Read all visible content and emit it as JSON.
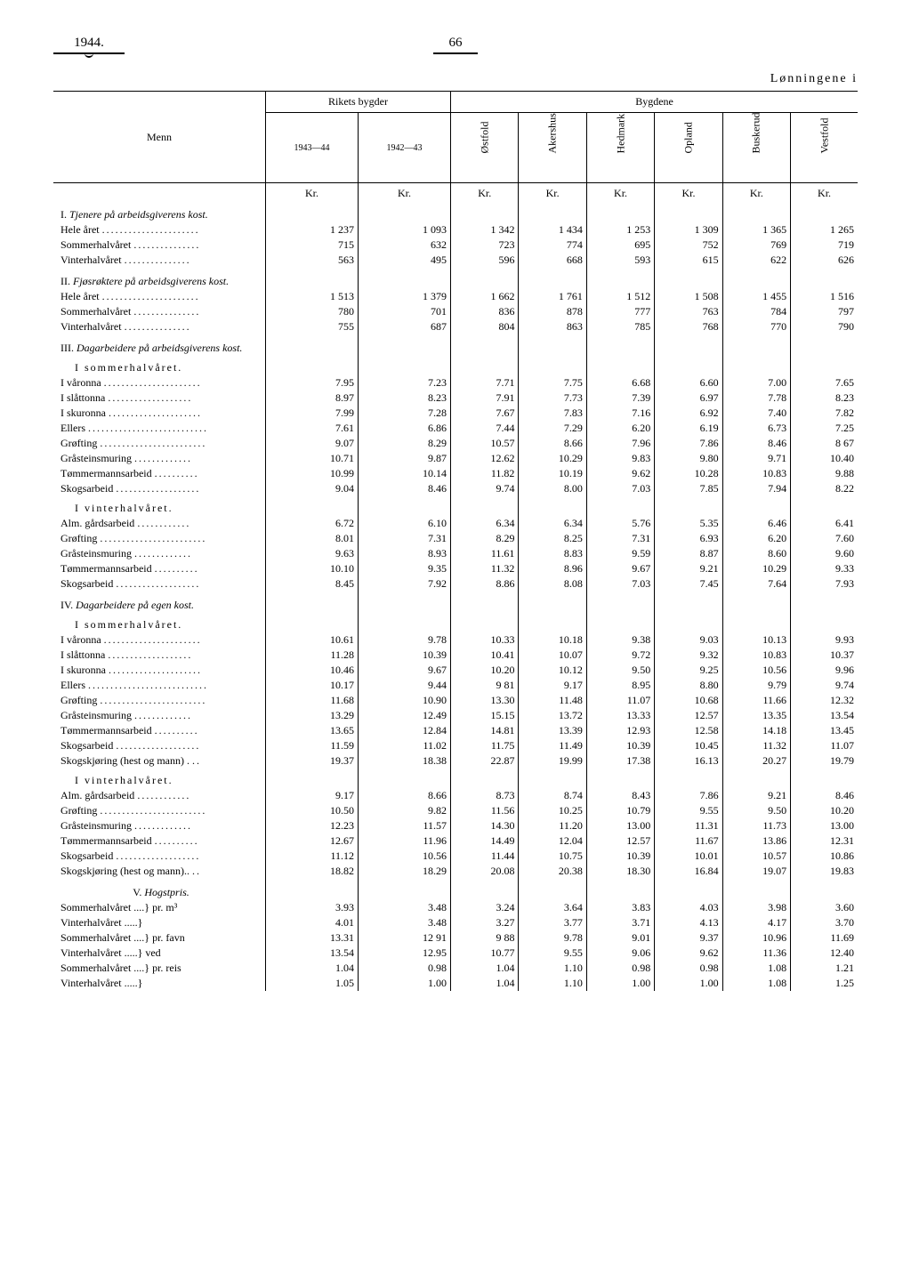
{
  "header": {
    "year": "1944.",
    "page": "66",
    "tableTitle": "Lønningene i"
  },
  "columns": {
    "menn": "Menn",
    "rikets": "Rikets bygder",
    "bygdene": "Bygdene",
    "y1": "1943—44",
    "y2": "1942—43",
    "regions": [
      "Østfold",
      "Akershus",
      "Hedmark",
      "Opland",
      "Buskerud",
      "Vestfold"
    ]
  },
  "kr": "Kr.",
  "sections": [
    {
      "title": "I. Tjenere på arbeidsgiverens kost.",
      "italic": true,
      "rows": [
        {
          "label": "Hele året",
          "v": [
            "1 237",
            "1 093",
            "1 342",
            "1 434",
            "1 253",
            "1 309",
            "1 365",
            "1 265"
          ]
        },
        {
          "label": "Sommerhalvåret",
          "v": [
            "715",
            "632",
            "723",
            "774",
            "695",
            "752",
            "769",
            "719"
          ]
        },
        {
          "label": "Vinterhalvåret",
          "v": [
            "563",
            "495",
            "596",
            "668",
            "593",
            "615",
            "622",
            "626"
          ]
        }
      ]
    },
    {
      "title": "II. Fjøsrøktere på arbeidsgiverens kost.",
      "italic": true,
      "rows": [
        {
          "label": "Hele året",
          "v": [
            "1 513",
            "1 379",
            "1 662",
            "1 761",
            "1 512",
            "1 508",
            "1 455",
            "1 516"
          ]
        },
        {
          "label": "Sommerhalvåret",
          "v": [
            "780",
            "701",
            "836",
            "878",
            "777",
            "763",
            "784",
            "797"
          ]
        },
        {
          "label": "Vinterhalvåret",
          "v": [
            "755",
            "687",
            "804",
            "863",
            "785",
            "768",
            "770",
            "790"
          ]
        }
      ]
    },
    {
      "title": "III. Dagarbeidere på arbeidsgiverens kost.",
      "italic": true,
      "subsections": [
        {
          "subtitle": "I sommerhalvåret.",
          "rows": [
            {
              "label": "I våronna",
              "v": [
                "7.95",
                "7.23",
                "7.71",
                "7.75",
                "6.68",
                "6.60",
                "7.00",
                "7.65"
              ]
            },
            {
              "label": "I slåttonna",
              "v": [
                "8.97",
                "8.23",
                "7.91",
                "7.73",
                "7.39",
                "6.97",
                "7.78",
                "8.23"
              ]
            },
            {
              "label": "I skuronna",
              "v": [
                "7.99",
                "7.28",
                "7.67",
                "7.83",
                "7.16",
                "6.92",
                "7.40",
                "7.82"
              ]
            },
            {
              "label": "Ellers",
              "v": [
                "7.61",
                "6.86",
                "7.44",
                "7.29",
                "6.20",
                "6.19",
                "6.73",
                "7.25"
              ]
            },
            {
              "label": "Grøfting",
              "v": [
                "9.07",
                "8.29",
                "10.57",
                "8.66",
                "7.96",
                "7.86",
                "8.46",
                "8 67"
              ]
            },
            {
              "label": "Gråsteinsmuring",
              "v": [
                "10.71",
                "9.87",
                "12.62",
                "10.29",
                "9.83",
                "9.80",
                "9.71",
                "10.40"
              ]
            },
            {
              "label": "Tømmermannsarbeid",
              "v": [
                "10.99",
                "10.14",
                "11.82",
                "10.19",
                "9.62",
                "10.28",
                "10.83",
                "9.88"
              ]
            },
            {
              "label": "Skogsarbeid",
              "v": [
                "9.04",
                "8.46",
                "9.74",
                "8.00",
                "7.03",
                "7.85",
                "7.94",
                "8.22"
              ]
            }
          ]
        },
        {
          "subtitle": "I vinterhalvåret.",
          "rows": [
            {
              "label": "Alm. gårdsarbeid",
              "v": [
                "6.72",
                "6.10",
                "6.34",
                "6.34",
                "5.76",
                "5.35",
                "6.46",
                "6.41"
              ]
            },
            {
              "label": "Grøfting",
              "v": [
                "8.01",
                "7.31",
                "8.29",
                "8.25",
                "7.31",
                "6.93",
                "6.20",
                "7.60"
              ]
            },
            {
              "label": "Gråsteinsmuring",
              "v": [
                "9.63",
                "8.93",
                "11.61",
                "8.83",
                "9.59",
                "8.87",
                "8.60",
                "9.60"
              ]
            },
            {
              "label": "Tømmermannsarbeid",
              "v": [
                "10.10",
                "9.35",
                "11.32",
                "8.96",
                "9.67",
                "9.21",
                "10.29",
                "9.33"
              ]
            },
            {
              "label": "Skogsarbeid",
              "v": [
                "8.45",
                "7.92",
                "8.86",
                "8.08",
                "7.03",
                "7.45",
                "7.64",
                "7.93"
              ]
            }
          ]
        }
      ]
    },
    {
      "title": "IV. Dagarbeidere på egen kost.",
      "italic": true,
      "subsections": [
        {
          "subtitle": "I sommerhalvåret.",
          "rows": [
            {
              "label": "I våronna",
              "v": [
                "10.61",
                "9.78",
                "10.33",
                "10.18",
                "9.38",
                "9.03",
                "10.13",
                "9.93"
              ]
            },
            {
              "label": "I slåttonna",
              "v": [
                "11.28",
                "10.39",
                "10.41",
                "10.07",
                "9.72",
                "9.32",
                "10.83",
                "10.37"
              ]
            },
            {
              "label": "I skuronna",
              "v": [
                "10.46",
                "9.67",
                "10.20",
                "10.12",
                "9.50",
                "9.25",
                "10.56",
                "9.96"
              ]
            },
            {
              "label": "Ellers",
              "v": [
                "10.17",
                "9.44",
                "9 81",
                "9.17",
                "8.95",
                "8.80",
                "9.79",
                "9.74"
              ]
            },
            {
              "label": "Grøfting",
              "v": [
                "11.68",
                "10.90",
                "13.30",
                "11.48",
                "11.07",
                "10.68",
                "11.66",
                "12.32"
              ]
            },
            {
              "label": "Gråsteinsmuring",
              "v": [
                "13.29",
                "12.49",
                "15.15",
                "13.72",
                "13.33",
                "12.57",
                "13.35",
                "13.54"
              ]
            },
            {
              "label": "Tømmermannsarbeid",
              "v": [
                "13.65",
                "12.84",
                "14.81",
                "13.39",
                "12.93",
                "12.58",
                "14.18",
                "13.45"
              ]
            },
            {
              "label": "Skogsarbeid",
              "v": [
                "11.59",
                "11.02",
                "11.75",
                "11.49",
                "10.39",
                "10.45",
                "11.32",
                "11.07"
              ]
            },
            {
              "label": "Skogskjøring (hest og mann) .",
              "v": [
                "19.37",
                "18.38",
                "22.87",
                "19.99",
                "17.38",
                "16.13",
                "20.27",
                "19.79"
              ]
            }
          ]
        },
        {
          "subtitle": "I vinterhalvåret.",
          "rows": [
            {
              "label": "Alm. gårdsarbeid",
              "v": [
                "9.17",
                "8.66",
                "8.73",
                "8.74",
                "8.43",
                "7.86",
                "9.21",
                "8.46"
              ]
            },
            {
              "label": "Grøfting",
              "v": [
                "10.50",
                "9.82",
                "11.56",
                "10.25",
                "10.79",
                "9.55",
                "9.50",
                "10.20"
              ]
            },
            {
              "label": "Gråsteinsmuring",
              "v": [
                "12.23",
                "11.57",
                "14.30",
                "11.20",
                "13.00",
                "11.31",
                "11.73",
                "13.00"
              ]
            },
            {
              "label": "Tømmermannsarbeid",
              "v": [
                "12.67",
                "11.96",
                "14.49",
                "12.04",
                "12.57",
                "11.67",
                "13.86",
                "12.31"
              ]
            },
            {
              "label": "Skogsarbeid",
              "v": [
                "11.12",
                "10.56",
                "11.44",
                "10.75",
                "10.39",
                "10.01",
                "10.57",
                "10.86"
              ]
            },
            {
              "label": "Skogskjøring (hest og mann)..",
              "v": [
                "18.82",
                "18.29",
                "20.08",
                "20.38",
                "18.30",
                "16.84",
                "19.07",
                "19.83"
              ]
            }
          ]
        }
      ]
    },
    {
      "title": "V. Hogstpris.",
      "italic": true,
      "rows": [
        {
          "label": "Sommerhalvåret ....} pr. m³",
          "v": [
            "3.93",
            "3.48",
            "3.24",
            "3.64",
            "3.83",
            "4.03",
            "3.98",
            "3.60"
          ]
        },
        {
          "label": "Vinterhalvåret .....}",
          "v": [
            "4.01",
            "3.48",
            "3.27",
            "3.77",
            "3.71",
            "4.13",
            "4.17",
            "3.70"
          ]
        },
        {
          "label": "Sommerhalvåret ....} pr. favn",
          "v": [
            "13.31",
            "12 91",
            "9 88",
            "9.78",
            "9.01",
            "9.37",
            "10.96",
            "11.69"
          ]
        },
        {
          "label": "Vinterhalvåret .....} ved",
          "v": [
            "13.54",
            "12.95",
            "10.77",
            "9.55",
            "9.06",
            "9.62",
            "11.36",
            "12.40"
          ]
        },
        {
          "label": "Sommerhalvåret ....} pr. reis",
          "v": [
            "1.04",
            "0.98",
            "1.04",
            "1.10",
            "0.98",
            "0.98",
            "1.08",
            "1.21"
          ]
        },
        {
          "label": "Vinterhalvåret .....}",
          "v": [
            "1.05",
            "1.00",
            "1.04",
            "1.10",
            "1.00",
            "1.00",
            "1.08",
            "1.25"
          ]
        }
      ]
    }
  ]
}
